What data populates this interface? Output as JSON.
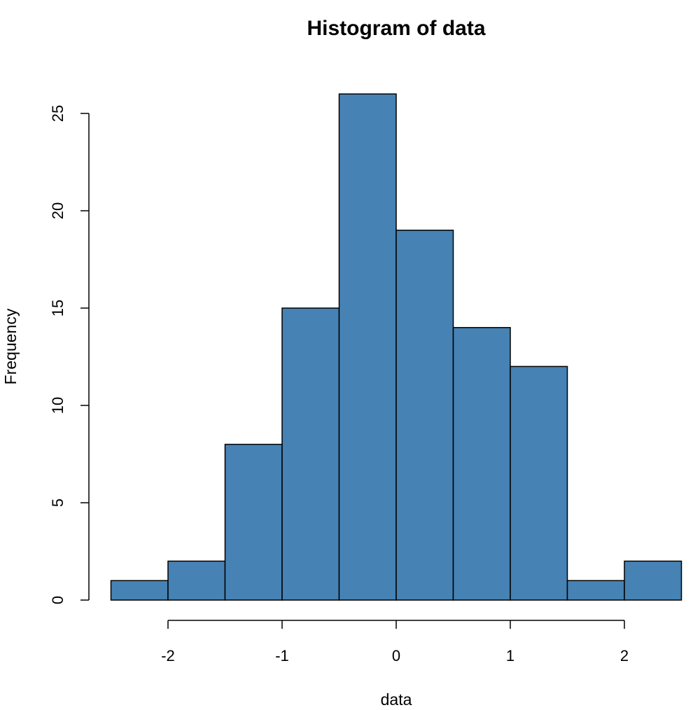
{
  "chart_data": {
    "type": "bar",
    "title": "Histogram of data",
    "xlabel": "data",
    "ylabel": "Frequency",
    "bins": [
      {
        "x0": -2.5,
        "x1": -2.0,
        "count": 1
      },
      {
        "x0": -2.0,
        "x1": -1.5,
        "count": 2
      },
      {
        "x0": -1.5,
        "x1": -1.0,
        "count": 8
      },
      {
        "x0": -1.0,
        "x1": -0.5,
        "count": 15
      },
      {
        "x0": -0.5,
        "x1": 0.0,
        "count": 26
      },
      {
        "x0": 0.0,
        "x1": 0.5,
        "count": 19
      },
      {
        "x0": 0.5,
        "x1": 1.0,
        "count": 14
      },
      {
        "x0": 1.0,
        "x1": 1.5,
        "count": 12
      },
      {
        "x0": 1.5,
        "x1": 2.0,
        "count": 1
      },
      {
        "x0": 2.0,
        "x1": 2.5,
        "count": 2
      }
    ],
    "xticks": [
      -2,
      -1,
      0,
      1,
      2
    ],
    "xtick_labels": [
      "-2",
      "-1",
      "0",
      "1",
      "2"
    ],
    "yticks": [
      0,
      5,
      10,
      15,
      20,
      25
    ],
    "ytick_labels": [
      "0",
      "5",
      "10",
      "15",
      "20",
      "25"
    ],
    "xlim": [
      -2.5,
      2.5
    ],
    "ylim": [
      0,
      26
    ],
    "grid": false,
    "bar_color": "#4682B4",
    "edge_color": "#000000"
  }
}
